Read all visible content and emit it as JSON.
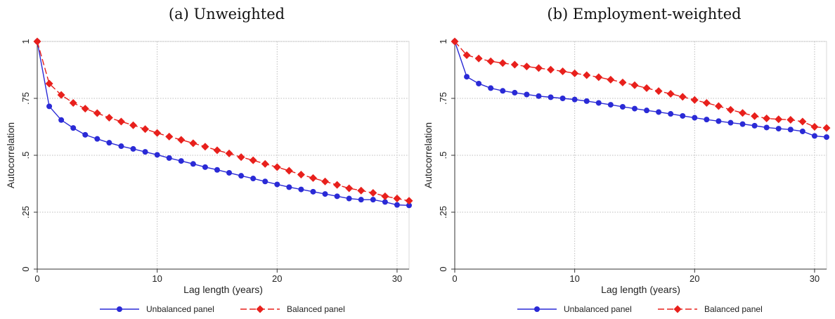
{
  "chart_data": [
    {
      "type": "line",
      "title": "(a) Unweighted",
      "xlabel": "Lag length (years)",
      "ylabel": "Autocorrelation",
      "xlim": [
        0,
        31
      ],
      "ylim": [
        0,
        1
      ],
      "xticks": [
        0,
        10,
        20,
        30
      ],
      "xtick_labels": [
        "0",
        "10",
        "20",
        "30"
      ],
      "yticks": [
        0,
        0.25,
        0.5,
        0.75,
        1
      ],
      "ytick_labels": [
        "0",
        ".25",
        ".5",
        ".75",
        "1"
      ],
      "grid": true,
      "legend_position": "bottom",
      "x": [
        0,
        1,
        2,
        3,
        4,
        5,
        6,
        7,
        8,
        9,
        10,
        11,
        12,
        13,
        14,
        15,
        16,
        17,
        18,
        19,
        20,
        21,
        22,
        23,
        24,
        25,
        26,
        27,
        28,
        29,
        30,
        31
      ],
      "series": [
        {
          "name": "Unbalanced panel",
          "color": "#2a2ad6",
          "marker": "circle",
          "dash": "solid",
          "values": [
            1.0,
            0.715,
            0.655,
            0.62,
            0.59,
            0.572,
            0.555,
            0.54,
            0.528,
            0.515,
            0.502,
            0.488,
            0.475,
            0.462,
            0.448,
            0.436,
            0.423,
            0.41,
            0.398,
            0.385,
            0.372,
            0.36,
            0.35,
            0.34,
            0.33,
            0.32,
            0.31,
            0.305,
            0.305,
            0.295,
            0.282,
            0.28
          ]
        },
        {
          "name": "Balanced panel",
          "color": "#e8201c",
          "marker": "diamond",
          "dash": "dashed",
          "values": [
            1.0,
            0.815,
            0.765,
            0.73,
            0.705,
            0.685,
            0.665,
            0.648,
            0.632,
            0.615,
            0.598,
            0.582,
            0.568,
            0.553,
            0.538,
            0.522,
            0.508,
            0.492,
            0.478,
            0.462,
            0.448,
            0.432,
            0.415,
            0.4,
            0.385,
            0.37,
            0.355,
            0.345,
            0.335,
            0.32,
            0.31,
            0.3
          ]
        }
      ]
    },
    {
      "type": "line",
      "title": "(b) Employment-weighted",
      "xlabel": "Lag length (years)",
      "ylabel": "Autocorrelation",
      "xlim": [
        0,
        31
      ],
      "ylim": [
        0,
        1
      ],
      "xticks": [
        0,
        10,
        20,
        30
      ],
      "xtick_labels": [
        "0",
        "10",
        "20",
        "30"
      ],
      "yticks": [
        0,
        0.25,
        0.5,
        0.75,
        1
      ],
      "ytick_labels": [
        "0",
        ".25",
        ".5",
        ".75",
        "1"
      ],
      "grid": true,
      "legend_position": "bottom",
      "x": [
        0,
        1,
        2,
        3,
        4,
        5,
        6,
        7,
        8,
        9,
        10,
        11,
        12,
        13,
        14,
        15,
        16,
        17,
        18,
        19,
        20,
        21,
        22,
        23,
        24,
        25,
        26,
        27,
        28,
        29,
        30,
        31
      ],
      "series": [
        {
          "name": "Unbalanced panel",
          "color": "#2a2ad6",
          "marker": "circle",
          "dash": "solid",
          "values": [
            1.0,
            0.845,
            0.815,
            0.795,
            0.783,
            0.775,
            0.767,
            0.76,
            0.755,
            0.75,
            0.745,
            0.738,
            0.73,
            0.722,
            0.713,
            0.705,
            0.697,
            0.69,
            0.682,
            0.673,
            0.665,
            0.657,
            0.65,
            0.643,
            0.637,
            0.63,
            0.622,
            0.617,
            0.613,
            0.605,
            0.585,
            0.58
          ]
        },
        {
          "name": "Balanced panel",
          "color": "#e8201c",
          "marker": "diamond",
          "dash": "dashed",
          "values": [
            1.0,
            0.94,
            0.925,
            0.913,
            0.905,
            0.898,
            0.89,
            0.883,
            0.876,
            0.869,
            0.86,
            0.852,
            0.843,
            0.832,
            0.82,
            0.808,
            0.795,
            0.782,
            0.77,
            0.757,
            0.743,
            0.73,
            0.716,
            0.7,
            0.686,
            0.672,
            0.662,
            0.658,
            0.656,
            0.648,
            0.625,
            0.62
          ]
        }
      ]
    }
  ]
}
